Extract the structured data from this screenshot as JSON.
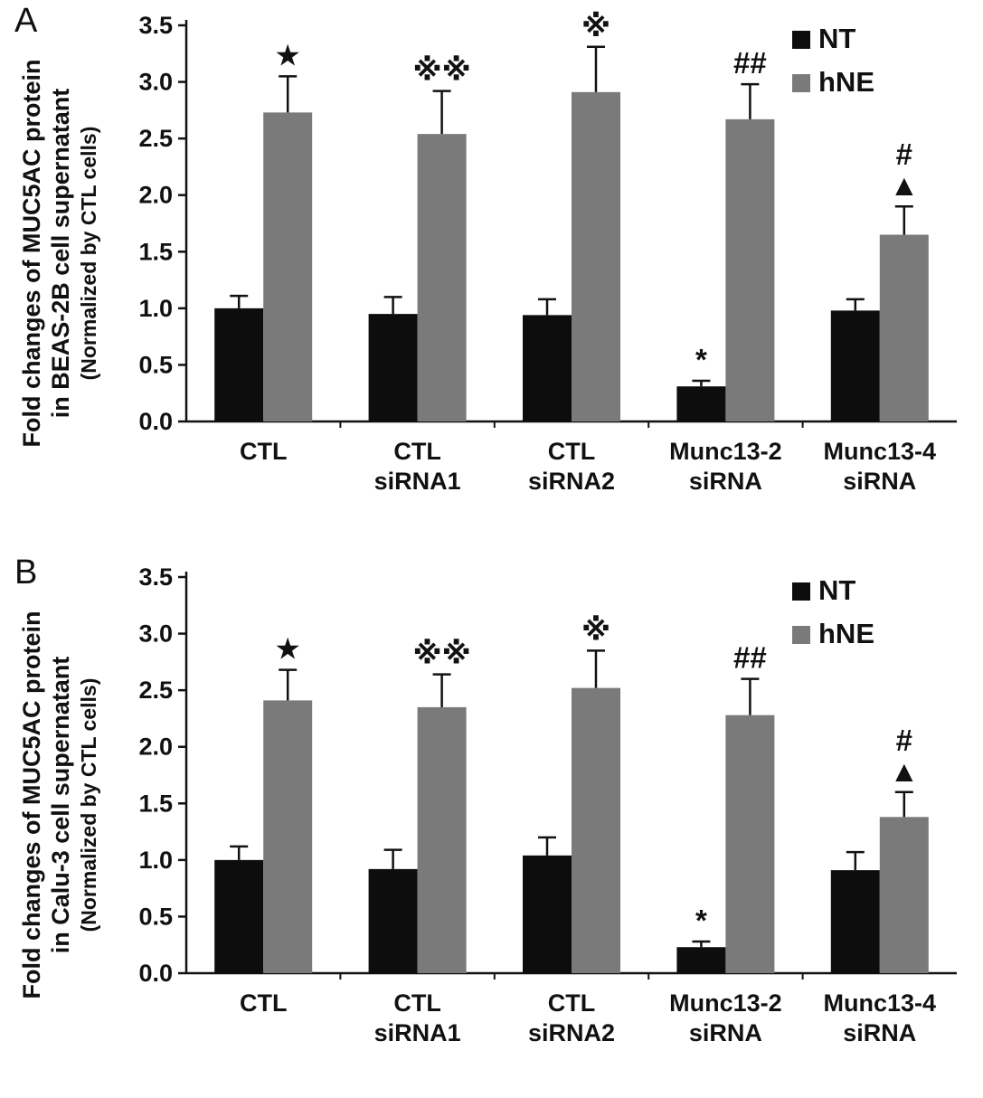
{
  "page": {
    "background": "#ffffff"
  },
  "panels": [
    {
      "letter": "A",
      "ylabel_line1": "Fold changes of MUC5AC protein",
      "ylabel_line2": "in BEAS-2B cell supernatant",
      "ylabel_line3": "(Normalized by CTL cells)"
    },
    {
      "letter": "B",
      "ylabel_line1": "Fold changes of MUC5AC protein",
      "ylabel_line2": "in Calu-3 cell supernatant",
      "ylabel_line3": "(Normalized by CTL cells)"
    }
  ],
  "chart_data": [
    {
      "type": "bar",
      "panel": "A",
      "title": "",
      "ylabel": "Fold changes of MUC5AC protein in BEAS-2B cell supernatant (Normalized by CTL cells)",
      "xlabel": "",
      "ylim": [
        0,
        3.5
      ],
      "ytick_step": 0.5,
      "ytick_labels": [
        "0.0",
        "0.5",
        "1.0",
        "1.5",
        "2.0",
        "2.5",
        "3.0",
        "3.5"
      ],
      "grid": false,
      "legend_position": "top-right",
      "categories": [
        "CTL",
        "CTL\nsiRNA1",
        "CTL\nsiRNA2",
        "Munc13-2\nsiRNA",
        "Munc13-4\nsiRNA"
      ],
      "series": [
        {
          "name": "NT",
          "color": "#0d0d0d",
          "values": [
            1.0,
            0.95,
            0.94,
            0.31,
            0.98
          ],
          "errors": [
            0.11,
            0.15,
            0.14,
            0.05,
            0.1
          ],
          "annotations": [
            "",
            "",
            "",
            "*",
            ""
          ]
        },
        {
          "name": "hNE",
          "color": "#7a7a7a",
          "values": [
            2.73,
            2.54,
            2.91,
            2.67,
            1.65
          ],
          "errors": [
            0.32,
            0.38,
            0.4,
            0.31,
            0.25
          ],
          "annotations": [
            "★",
            "※※",
            "※",
            "##",
            "#\n▲"
          ]
        }
      ]
    },
    {
      "type": "bar",
      "panel": "B",
      "title": "",
      "ylabel": "Fold changes of MUC5AC protein in Calu-3 cell supernatant (Normalized by CTL cells)",
      "xlabel": "",
      "ylim": [
        0,
        3.5
      ],
      "ytick_step": 0.5,
      "ytick_labels": [
        "0.0",
        "0.5",
        "1.0",
        "1.5",
        "2.0",
        "2.5",
        "3.0",
        "3.5"
      ],
      "grid": false,
      "legend_position": "top-right",
      "categories": [
        "CTL",
        "CTL\nsiRNA1",
        "CTL\nsiRNA2",
        "Munc13-2\nsiRNA",
        "Munc13-4\nsiRNA"
      ],
      "series": [
        {
          "name": "NT",
          "color": "#0d0d0d",
          "values": [
            1.0,
            0.92,
            1.04,
            0.23,
            0.91
          ],
          "errors": [
            0.12,
            0.17,
            0.16,
            0.05,
            0.16
          ],
          "annotations": [
            "",
            "",
            "",
            "*",
            ""
          ]
        },
        {
          "name": "hNE",
          "color": "#7a7a7a",
          "values": [
            2.41,
            2.35,
            2.52,
            2.28,
            1.38
          ],
          "errors": [
            0.27,
            0.29,
            0.33,
            0.32,
            0.22
          ],
          "annotations": [
            "★",
            "※※",
            "※",
            "##",
            "#\n▲"
          ]
        }
      ]
    }
  ]
}
